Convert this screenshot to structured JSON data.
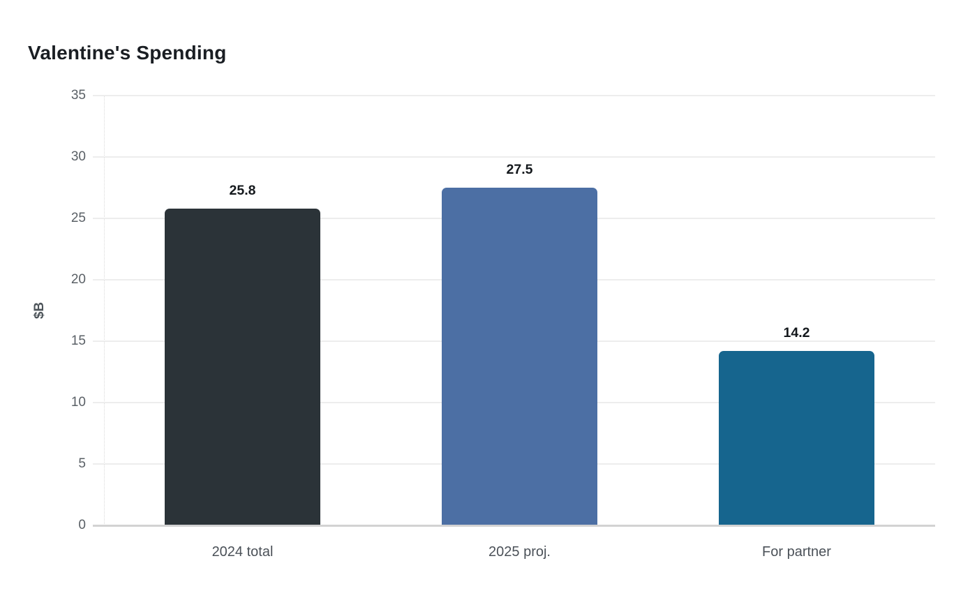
{
  "page": {
    "title": "Valentine's Spending"
  },
  "chart_data": {
    "type": "bar",
    "title": "Valentine's Spending",
    "categories": [
      "2024 total",
      "2025 proj.",
      "For partner"
    ],
    "values": [
      25.8,
      27.5,
      14.2
    ],
    "value_labels": [
      "25.8",
      "27.5",
      "14.2"
    ],
    "bar_colors": [
      "#2b3338",
      "#4c6fa4",
      "#16658e"
    ],
    "xlabel": "",
    "ylabel": "$B",
    "ylim": [
      0,
      35
    ],
    "yticks": [
      0,
      5,
      10,
      15,
      20,
      25,
      30,
      35
    ],
    "grid": "horizontal-only",
    "legend": "none"
  },
  "colors": {
    "background": "#ffffff",
    "title_text": "#1a1e23",
    "tick_text": "#5a6066",
    "category_text": "#4b5158",
    "value_text": "#14181c",
    "gridline": "#ededed",
    "axis_line": "#d2d2d2",
    "y_axis_dotted": "#d9d9d9"
  }
}
